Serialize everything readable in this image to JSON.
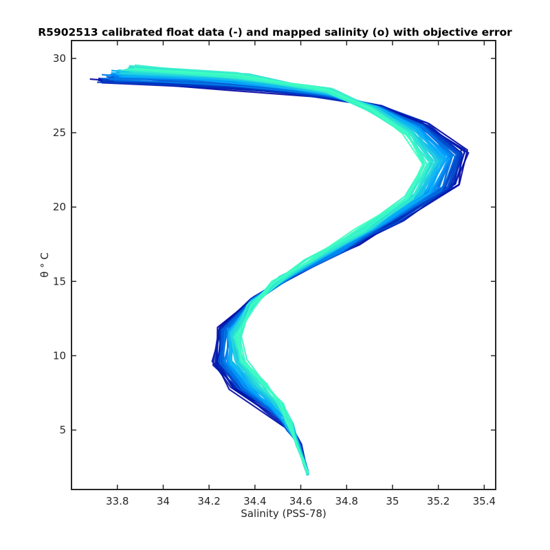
{
  "chart_data": {
    "type": "line",
    "title": "R5902513 calibrated float data (-) and mapped salinity (o) with objective error",
    "xlabel": "Salinity (PSS-78)",
    "ylabel": "θ ° C",
    "xlim": [
      33.6,
      35.45
    ],
    "ylim": [
      1.0,
      31.2
    ],
    "xticks": [
      "33.8",
      "34",
      "34.2",
      "34.4",
      "34.6",
      "34.8",
      "35",
      "35.2",
      "35.4"
    ],
    "yticks": [
      "5",
      "10",
      "15",
      "20",
      "25",
      "30"
    ],
    "grid": false,
    "legend": "none",
    "color_range": [
      "#0000a0",
      "#00a0ff",
      "#40ffc0"
    ],
    "profile_count": 60,
    "series": [
      {
        "name": "",
        "x": [
          33.72,
          34.3,
          34.75,
          34.95,
          35.15,
          35.32,
          35.28,
          35.05,
          34.85,
          34.6,
          34.4,
          34.25,
          34.22,
          34.3,
          34.45,
          34.55,
          34.6,
          34.62,
          34.63
        ],
        "y": [
          28.4,
          28.0,
          27.3,
          26.7,
          25.6,
          23.8,
          21.6,
          19.3,
          17.6,
          15.8,
          14.0,
          11.9,
          9.5,
          7.8,
          6.3,
          5.0,
          3.9,
          2.7,
          2.1
        ]
      },
      {
        "name": "",
        "x": [
          33.86,
          34.35,
          34.72,
          34.9,
          35.06,
          35.14,
          35.05,
          34.85,
          34.62,
          34.48,
          34.38,
          34.33,
          34.36,
          34.45,
          34.52,
          34.55,
          34.58,
          34.61,
          34.63
        ],
        "y": [
          29.5,
          29.0,
          27.9,
          26.6,
          24.9,
          22.8,
          20.6,
          18.4,
          16.3,
          14.9,
          13.3,
          11.3,
          9.6,
          8.1,
          6.8,
          5.5,
          4.1,
          2.9,
          2.1
        ]
      }
    ]
  }
}
